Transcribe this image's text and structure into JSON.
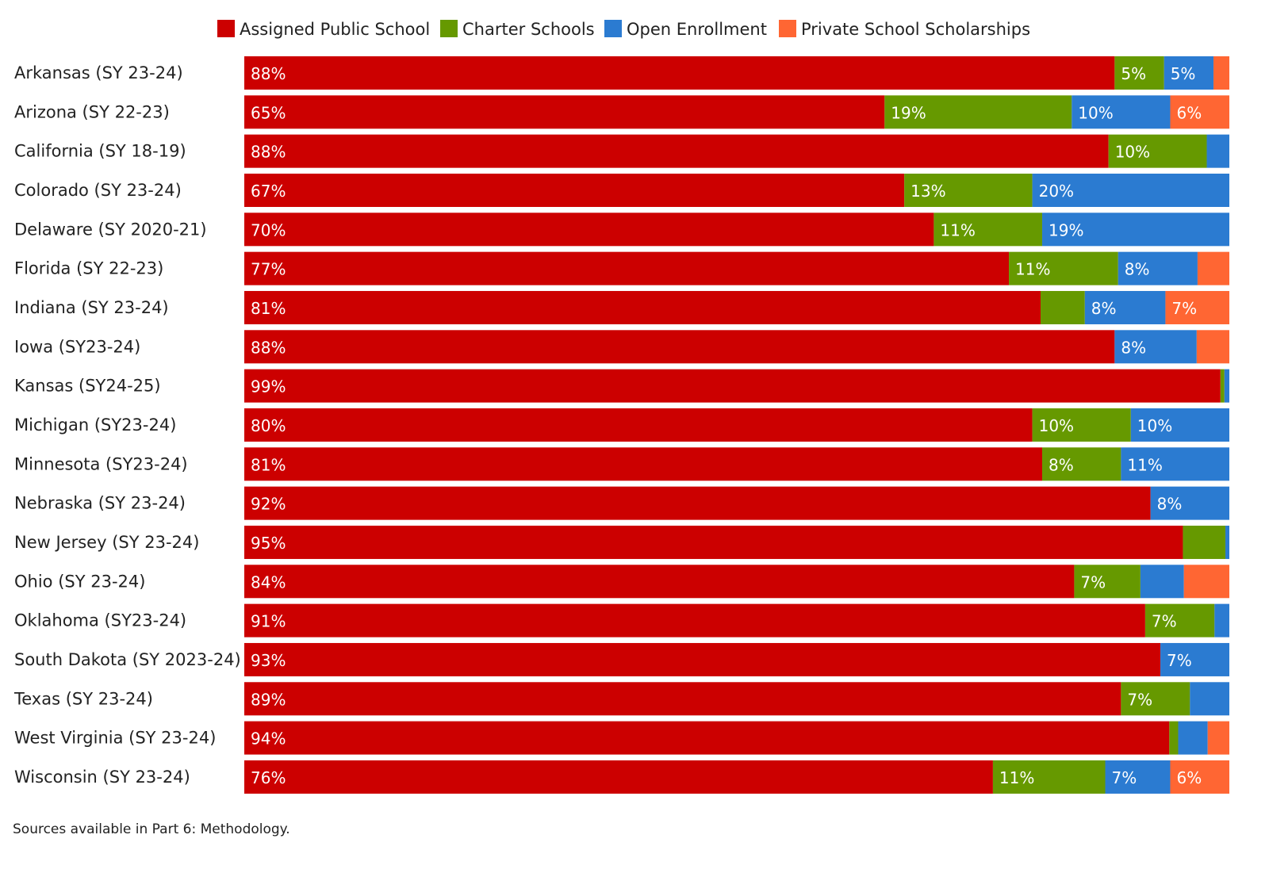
{
  "chart_data": {
    "type": "bar",
    "orientation": "horizontal",
    "stacked": true,
    "normalized": true,
    "categories": [
      "Arkansas (SY 23-24)",
      "Arizona (SY 22-23)",
      "California (SY 18-19)",
      "Colorado (SY 23-24)",
      "Delaware (SY 2020-21)",
      "Florida (SY 22-23)",
      "Indiana (SY 23-24)",
      "Iowa (SY23-24)",
      "Kansas (SY24-25)",
      "Michigan (SY23-24)",
      "Minnesota (SY23-24)",
      "Nebraska (SY 23-24)",
      "New Jersey (SY 23-24)",
      "Ohio (SY 23-24)",
      "Oklahoma (SY23-24)",
      "South Dakota (SY 2023-24)",
      "Texas (SY 23-24)",
      "West Virginia (SY 23-24)",
      "Wisconsin (SY 23-24)"
    ],
    "series": [
      {
        "name": "Assigned Public School",
        "color": "#cc0000",
        "values": [
          88,
          65,
          88,
          67,
          70,
          77,
          81,
          88,
          99,
          80,
          81,
          92,
          95,
          84,
          91,
          93,
          89,
          94,
          76
        ],
        "labels": [
          "88%",
          "65%",
          "88%",
          "67%",
          "70%",
          "77%",
          "81%",
          "88%",
          "99%",
          "80%",
          "81%",
          "92%",
          "95%",
          "84%",
          "91%",
          "93%",
          "89%",
          "94%",
          "76%"
        ]
      },
      {
        "name": "Charter Schools",
        "color": "#669900",
        "values": [
          5,
          19,
          10,
          13,
          11,
          11,
          4.5,
          0,
          0.4,
          10,
          8,
          0,
          4.3,
          6.7,
          7,
          0,
          7,
          0.9,
          11.4
        ],
        "labels": [
          "5%",
          "19%",
          "10%",
          "13%",
          "11%",
          "11%",
          "",
          "",
          "",
          "10%",
          "8%",
          "",
          "",
          "7%",
          "7%",
          "",
          "7%",
          "",
          "11%"
        ]
      },
      {
        "name": "Open Enrollment",
        "color": "#2b7bd1",
        "values": [
          5,
          10,
          2.3,
          20,
          19,
          8,
          8.2,
          8.3,
          0.5,
          10,
          11,
          8,
          0.4,
          4.4,
          1.5,
          7,
          4,
          3,
          6.6
        ],
        "labels": [
          "5%",
          "10%",
          "",
          "20%",
          "19%",
          "8%",
          "8%",
          "8%",
          "",
          "10%",
          "11%",
          "8%",
          "",
          "",
          "",
          "7%",
          "",
          "",
          "7%"
        ]
      },
      {
        "name": "Private School Scholarships",
        "color": "#ff6633",
        "values": [
          1.6,
          6,
          0,
          0,
          0,
          3.2,
          6.5,
          3.3,
          0,
          0,
          0,
          0,
          0,
          4.6,
          0,
          0,
          0,
          2.2,
          6
        ],
        "labels": [
          "",
          "6%",
          "",
          "",
          "",
          "",
          "7%",
          "",
          "",
          "",
          "",
          "",
          "",
          "",
          "",
          "",
          "",
          "",
          "6%"
        ]
      }
    ],
    "xlim": [
      0,
      100
    ],
    "legend_position": "top",
    "grid": false
  },
  "note": "Sources available in Part 6: Methodology."
}
